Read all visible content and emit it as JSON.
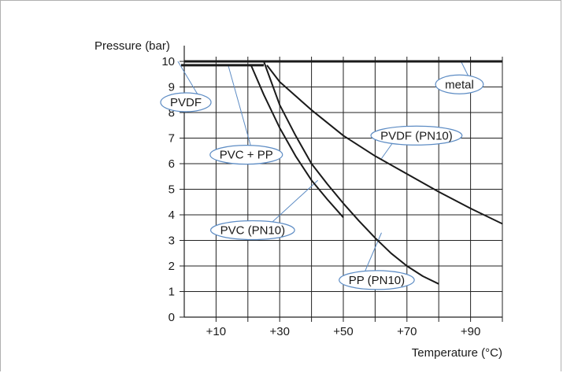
{
  "chart_data": {
    "type": "line",
    "ylabel": "Pressure (bar)",
    "xlabel": "Temperature (°C)",
    "xlim": [
      0,
      100
    ],
    "ylim": [
      0,
      10
    ],
    "x_ticks": [
      {
        "value": 10,
        "label": "+10"
      },
      {
        "value": 30,
        "label": "+30"
      },
      {
        "value": 50,
        "label": "+50"
      },
      {
        "value": 70,
        "label": "+70"
      },
      {
        "value": 90,
        "label": "+90"
      }
    ],
    "y_ticks": [
      {
        "value": 0,
        "label": "0"
      },
      {
        "value": 1,
        "label": "1"
      },
      {
        "value": 2,
        "label": "2"
      },
      {
        "value": 3,
        "label": "3"
      },
      {
        "value": 4,
        "label": "4"
      },
      {
        "value": 5,
        "label": "5"
      },
      {
        "value": 6,
        "label": "6"
      },
      {
        "value": 7,
        "label": "7"
      },
      {
        "value": 8,
        "label": "8"
      },
      {
        "value": 9,
        "label": "9"
      },
      {
        "value": 10,
        "label": "10"
      }
    ],
    "grid": true,
    "series": [
      {
        "name": "metal",
        "color": "#1a1a1a",
        "points": [
          [
            0,
            10
          ],
          [
            100,
            10
          ]
        ]
      },
      {
        "name": "PVC + PP",
        "color": "#1a1a1a",
        "points": [
          [
            -1,
            9.85
          ],
          [
            25,
            9.85
          ]
        ]
      },
      {
        "name": "PVC (PN10)",
        "color": "#1a1a1a",
        "points": [
          [
            21,
            9.85
          ],
          [
            25,
            8.7
          ],
          [
            30,
            7.4
          ],
          [
            35,
            6.3
          ],
          [
            40,
            5.35
          ],
          [
            45,
            4.6
          ],
          [
            50,
            3.9
          ]
        ]
      },
      {
        "name": "PP (PN10)",
        "color": "#1a1a1a",
        "points": [
          [
            25,
            10
          ],
          [
            30,
            8.3
          ],
          [
            35,
            7.1
          ],
          [
            40,
            6.0
          ],
          [
            45,
            5.2
          ],
          [
            50,
            4.45
          ],
          [
            55,
            3.75
          ],
          [
            60,
            3.1
          ],
          [
            65,
            2.5
          ],
          [
            70,
            2.0
          ],
          [
            75,
            1.6
          ],
          [
            80,
            1.3
          ]
        ]
      },
      {
        "name": "PVDF (PN10)",
        "color": "#1a1a1a",
        "points": [
          [
            26,
            9.85
          ],
          [
            30,
            9.2
          ],
          [
            40,
            8.1
          ],
          [
            50,
            7.1
          ],
          [
            60,
            6.3
          ],
          [
            70,
            5.6
          ],
          [
            80,
            4.9
          ],
          [
            90,
            4.25
          ],
          [
            100,
            3.65
          ]
        ]
      }
    ],
    "labels": [
      {
        "text": "PVDF",
        "x": 0.5,
        "y": 8.4,
        "leader": [
          [
            -2,
            10.0
          ],
          [
            4.5,
            8.65
          ]
        ]
      },
      {
        "text": "PVC + PP",
        "x": 19.5,
        "y": 6.35,
        "leader": [
          [
            13.8,
            9.85
          ],
          [
            21,
            6.65
          ]
        ]
      },
      {
        "text": "metal",
        "x": 86.5,
        "y": 9.1,
        "leader": [
          [
            87,
            10.0
          ],
          [
            90,
            9.25
          ]
        ]
      },
      {
        "text": "PVDF (PN10)",
        "x": 73,
        "y": 7.1,
        "leader": [
          [
            62,
            6.2
          ],
          [
            66,
            6.9
          ]
        ]
      },
      {
        "text": "PVC (PN10)",
        "x": 21.5,
        "y": 3.4,
        "leader": [
          [
            42,
            5.35
          ],
          [
            27.5,
            3.7
          ]
        ]
      },
      {
        "text": "PP (PN10)",
        "x": 60.5,
        "y": 1.45,
        "leader": [
          [
            62,
            3.3
          ],
          [
            56.5,
            1.7
          ]
        ]
      }
    ]
  }
}
